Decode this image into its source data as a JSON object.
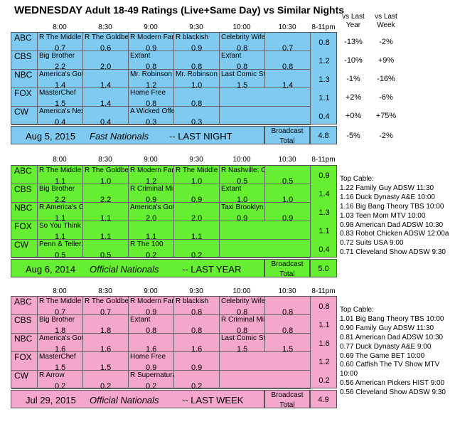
{
  "title": {
    "day": "WEDNESDAY",
    "rest": " Adult 18-49 Ratings (Live+Same Day) vs Similar Nights"
  },
  "times": [
    "8:00",
    "8:30",
    "9:00",
    "9:30",
    "10:00",
    "10:30",
    "8-11pm"
  ],
  "vs_headers": {
    "last_year": "vs Last\nYear",
    "last_week": "vs Last\nWeek"
  },
  "colors": {
    "blue": "#7fcaf0",
    "green": "#66ee33",
    "pink": "#f4a6cc"
  },
  "panel1": {
    "rows": [
      {
        "net": "ABC",
        "cells": [
          [
            "R The Middle",
            "0.7",
            1
          ],
          [
            "R The Goldbe",
            "0.6",
            1
          ],
          [
            "R Modern Far",
            "0.9",
            1
          ],
          [
            "R blackish",
            "0.9",
            1
          ],
          [
            "Celebrity Wife Swap",
            "0.8",
            1
          ],
          [
            "",
            "0.7",
            1
          ]
        ],
        "total": "0.8",
        "vs_year": "-13%",
        "vs_week": "-2%"
      },
      {
        "net": "CBS",
        "cells": [
          [
            "Big Brother",
            "2.2",
            1
          ],
          [
            "",
            "2.0",
            1
          ],
          [
            "Extant",
            "0.8",
            1
          ],
          [
            "",
            "0.8",
            1
          ],
          [
            "Extant",
            "0.8",
            1
          ],
          [
            "",
            "0.8",
            1
          ]
        ],
        "total": "1.2",
        "vs_year": "-10%",
        "vs_week": "+9%"
      },
      {
        "net": "NBC",
        "cells": [
          [
            "America's Got Talent",
            "1.4",
            1
          ],
          [
            "",
            "1.4",
            1
          ],
          [
            "Mr. Robinson",
            "1.2",
            1
          ],
          [
            "Mr. Robinson",
            "1.0",
            1
          ],
          [
            "Last Comic Standing",
            "1.5",
            1
          ],
          [
            "",
            "1.4",
            1
          ]
        ],
        "total": "1.3",
        "vs_year": "-1%",
        "vs_week": "-16%"
      },
      {
        "net": "FOX",
        "cells": [
          [
            "MasterChef",
            "1.5",
            1
          ],
          [
            "",
            "1.4",
            1
          ],
          [
            "Home Free",
            "0.8",
            1
          ],
          [
            "",
            "0.8",
            1
          ],
          [
            "",
            "",
            2
          ]
        ],
        "total": "1.1",
        "vs_year": "+2%",
        "vs_week": "-6%"
      },
      {
        "net": "CW",
        "cells": [
          [
            "America's Next Top Model",
            "0.4",
            1
          ],
          [
            "",
            "0.4",
            1
          ],
          [
            "A Wicked Offer",
            "0.3",
            1
          ],
          [
            "",
            "0.3",
            1
          ],
          [
            "",
            "",
            2
          ]
        ],
        "total": "0.4",
        "vs_year": "+0%",
        "vs_week": "+75%"
      }
    ],
    "footer": {
      "date": "Aug 5, 2015",
      "label": "Fast Nationals",
      "suffix": "--  LAST NIGHT",
      "broadcast": "Broadcast",
      "total_label": "Total",
      "total": "4.8",
      "vs_year": "-5%",
      "vs_week": "-2%"
    }
  },
  "panel2": {
    "rows": [
      {
        "net": "ABC",
        "cells": [
          [
            "R The Middle",
            "1.1",
            1
          ],
          [
            "R The Goldbe",
            "1.0",
            1
          ],
          [
            "R Modern Far",
            "1.2",
            1
          ],
          [
            "R The Middle",
            "1.0",
            1
          ],
          [
            "R Nashville: On the Record",
            "0.5",
            1
          ],
          [
            "",
            "0.5",
            1
          ]
        ],
        "total": "0.9"
      },
      {
        "net": "CBS",
        "cells": [
          [
            "Big Brother",
            "2.2",
            1
          ],
          [
            "",
            "2.2",
            1
          ],
          [
            "R Criminal Minds",
            "0.9",
            1
          ],
          [
            "",
            "0.9",
            1
          ],
          [
            "Extant",
            "1.0",
            1
          ],
          [
            "",
            "1.0",
            1
          ]
        ],
        "total": "1.4"
      },
      {
        "net": "NBC",
        "cells": [
          [
            "R America's Got Talent",
            "1.1",
            1
          ],
          [
            "",
            "1.1",
            1
          ],
          [
            "America's Got Talent",
            "2.0",
            1
          ],
          [
            "",
            "2.0",
            1
          ],
          [
            "Taxi Brooklyn",
            "0.9",
            1
          ],
          [
            "",
            "0.9",
            1
          ]
        ],
        "total": "1.3"
      },
      {
        "net": "FOX",
        "cells": [
          [
            "So You Think You Can Dance",
            "1.1",
            1
          ],
          [
            "",
            "1.1",
            1
          ],
          [
            "",
            "1.1",
            1
          ],
          [
            "",
            "1.1",
            1
          ],
          [
            "",
            "",
            2
          ]
        ],
        "total": "1.1"
      },
      {
        "net": "CW",
        "cells": [
          [
            "Penn & Teller: Fool Us",
            "0.5",
            1
          ],
          [
            "",
            "0.5",
            1
          ],
          [
            "R The 100",
            "0.2",
            1
          ],
          [
            "",
            "0.2",
            1
          ],
          [
            "",
            "",
            2
          ]
        ],
        "total": "0.4"
      }
    ],
    "footer": {
      "date": "Aug 6, 2014",
      "label": "Official Nationals",
      "suffix": "--  LAST YEAR",
      "broadcast": "Broadcast",
      "total_label": "Total",
      "total": "5.0"
    },
    "top_cable_title": "Top Cable:",
    "top_cable": [
      "1.22 Family Guy ADSW 11:30",
      "1.16 Duck Dynasty A&E 10:00",
      "1.16 Big Bang Theory TBS 10:00",
      "1.03 Teen Mom MTV 10:00",
      "0.98 American Dad ADSW 10:30",
      "0.83 Robot Chicken ADSW 12:00a",
      "0.72 Suits USA 9:00",
      "0.71 Cleveland Show ADSW 9:30"
    ]
  },
  "panel3": {
    "rows": [
      {
        "net": "ABC",
        "cells": [
          [
            "R The Middle",
            "0.7",
            1
          ],
          [
            "R The Goldbe",
            "0.7",
            1
          ],
          [
            "R Modern Far",
            "0.9",
            1
          ],
          [
            "R blackish",
            "0.8",
            1
          ],
          [
            "Celebrity Wife Swap",
            "0.8",
            1
          ],
          [
            "",
            "0.8",
            1
          ]
        ],
        "total": "0.8"
      },
      {
        "net": "CBS",
        "cells": [
          [
            "Big Brother",
            "1.8",
            1
          ],
          [
            "",
            "1.8",
            1
          ],
          [
            "Extant",
            "0.8",
            1
          ],
          [
            "",
            "0.8",
            1
          ],
          [
            "R Criminal Minds",
            "0.8",
            1
          ],
          [
            "",
            "0.8",
            1
          ]
        ],
        "total": "1.1"
      },
      {
        "net": "NBC",
        "cells": [
          [
            "America's Got Talent",
            "1.6",
            1
          ],
          [
            "",
            "1.6",
            1
          ],
          [
            "",
            "1.6",
            1
          ],
          [
            "",
            "1.6",
            1
          ],
          [
            "Last Comic Standing",
            "1.5",
            1
          ],
          [
            "",
            "1.5",
            1
          ]
        ],
        "total": "1.6"
      },
      {
        "net": "FOX",
        "cells": [
          [
            "MasterChef",
            "1.5",
            1
          ],
          [
            "",
            "1.5",
            1
          ],
          [
            "Home Free",
            "0.9",
            1
          ],
          [
            "",
            "0.9",
            1
          ],
          [
            "",
            "",
            2
          ]
        ],
        "total": "1.2"
      },
      {
        "net": "CW",
        "cells": [
          [
            "R Arrow",
            "0.2",
            1
          ],
          [
            "",
            "0.2",
            1
          ],
          [
            "R Supernatural",
            "0.2",
            1
          ],
          [
            "",
            "0.2",
            1
          ],
          [
            "",
            "",
            2
          ]
        ],
        "total": "0.2"
      }
    ],
    "footer": {
      "date": "Jul 29, 2015",
      "label": "Official Nationals",
      "suffix": "--  LAST WEEK",
      "broadcast": "Broadcast",
      "total_label": "Total",
      "total": "4.9"
    },
    "top_cable_title": "Top Cable:",
    "top_cable": [
      "1.01 Big Bang Theory TBS 10:00",
      "0.90 Family Guy ADSW 11:30",
      "0.81 American Dad ADSW 10:30",
      "0.77 Duck Dynasty A&E 9:00",
      "0.69 The Game BET 10:00",
      "0.60 Catfish The TV Show MTV 10:00",
      "0.56 American Pickers HIST 9:00",
      "0.56 Cleveland Show ADSW 9:30"
    ]
  }
}
